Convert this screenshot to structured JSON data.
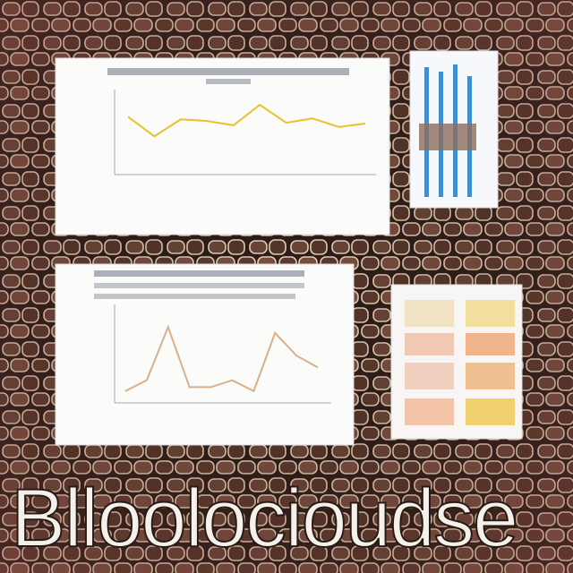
{
  "headline": "Blloolocioudse",
  "charts": [
    {
      "type": "line",
      "color": "#e8c22a",
      "ylim": [
        0,
        100
      ],
      "values": [
        68,
        45,
        65,
        63,
        58,
        82,
        61,
        66,
        56,
        60
      ]
    },
    {
      "type": "line",
      "color": "#d9b08a",
      "ylim": [
        0,
        100
      ],
      "values": [
        12,
        23,
        77,
        16,
        16,
        23,
        12,
        71,
        48,
        36
      ]
    }
  ]
}
